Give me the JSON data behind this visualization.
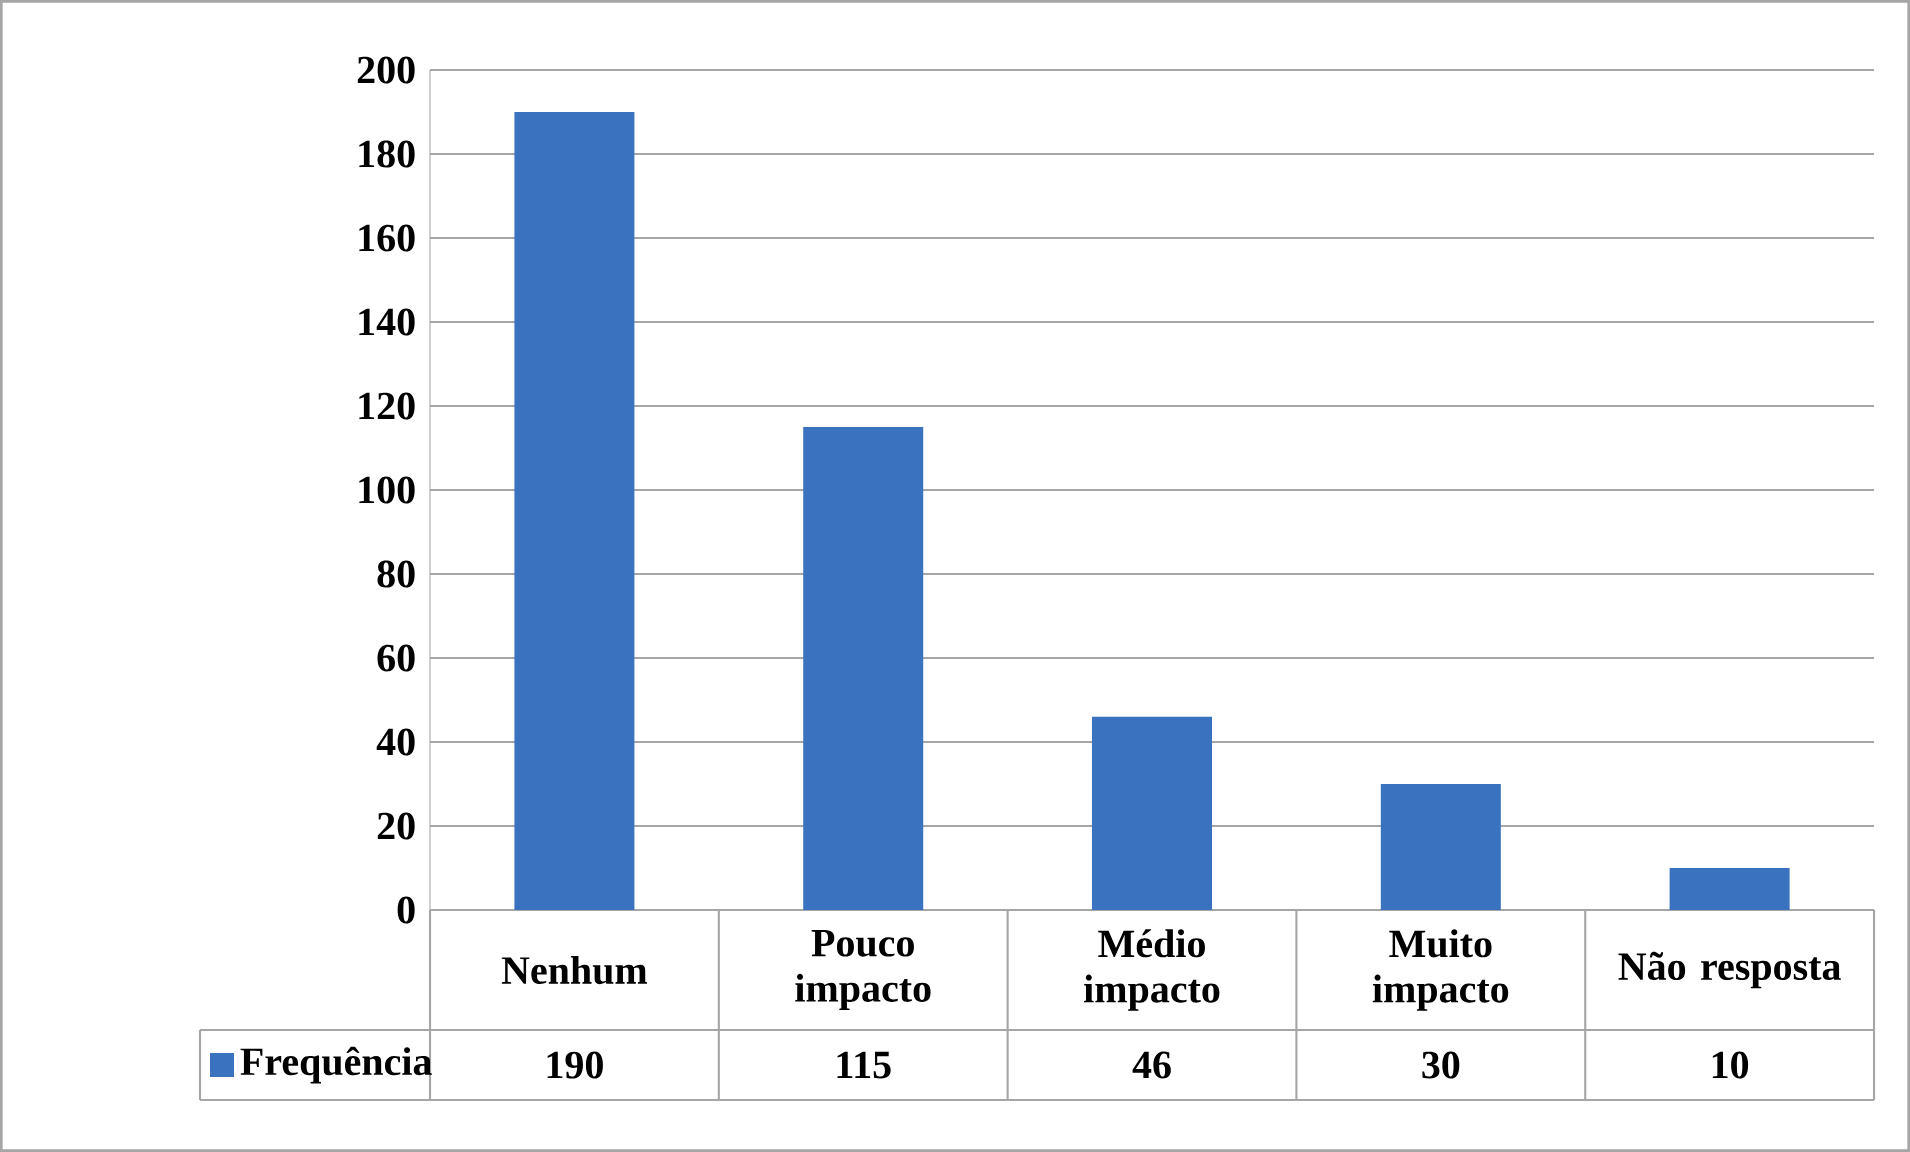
{
  "chart_data": {
    "type": "bar",
    "categories": [
      "Nenhum",
      "Pouco impacto",
      "Médio impacto",
      "Muito impacto",
      "Não resposta"
    ],
    "series": [
      {
        "name": "Frequência",
        "color": "#3a72c0",
        "values": [
          190,
          115,
          46,
          30,
          10
        ]
      }
    ],
    "ylim": [
      0,
      200
    ],
    "yticks": [
      0,
      20,
      40,
      60,
      80,
      100,
      120,
      140,
      160,
      180,
      200
    ],
    "grid": "y",
    "legend": "bottom",
    "data_labels": true
  }
}
